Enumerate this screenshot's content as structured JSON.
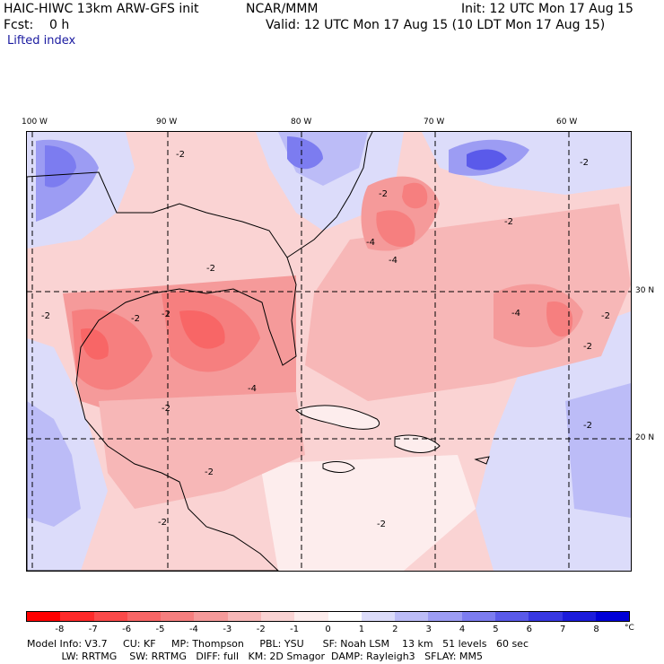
{
  "header": {
    "model": "HAIC-HIWC 13km ARW-GFS init",
    "org": "NCAR/MMM",
    "init": "Init: 12 UTC Mon 17 Aug 15",
    "fcst": "Fcst:    0 h",
    "valid": "Valid: 12 UTC Mon 17 Aug 15 (10 LDT Mon 17 Aug 15)",
    "field": "Lifted index"
  },
  "map": {
    "lon_labels": [
      "100 W",
      "90 W",
      "80 W",
      "70 W",
      "60 W"
    ],
    "lat_labels": [
      "30 N",
      "20 N"
    ],
    "contour_labels": [
      "-2",
      "-2",
      "-2",
      "-4",
      "-4",
      "-2",
      "-2",
      "-2",
      "-4",
      "-2",
      "-2",
      "-2",
      "-2",
      "-4",
      "-2",
      "-2",
      "-2",
      "-2",
      "-2"
    ]
  },
  "colorbar": {
    "ticks": [
      "-8",
      "-7",
      "-6",
      "-5",
      "-4",
      "-3",
      "-2",
      "-1",
      "0",
      "1",
      "2",
      "3",
      "4",
      "5",
      "6",
      "7",
      "8"
    ],
    "unit": "°C",
    "colors": [
      "#ff0000",
      "#ff2a2a",
      "#fb4a4a",
      "#f86666",
      "#f67f7f",
      "#f59a9a",
      "#f7b7b7",
      "#fad3d3",
      "#fdeded",
      "#ffffff",
      "#dcdcfa",
      "#bcbcf7",
      "#9c9cf3",
      "#7c7cf0",
      "#5a5aea",
      "#3838e2",
      "#1c1cdb",
      "#0000d7"
    ]
  },
  "footer": {
    "line1": "Model Info: V3.7     CU: KF     MP: Thompson     PBL: YSU      SF: Noah LSM    13 km   51 levels   60 sec",
    "line2": "           LW: RRTMG    SW: RRTMG   DIFF: full   KM: 2D Smagor  DAMP: Rayleigh3   SFLAY: MM5"
  }
}
